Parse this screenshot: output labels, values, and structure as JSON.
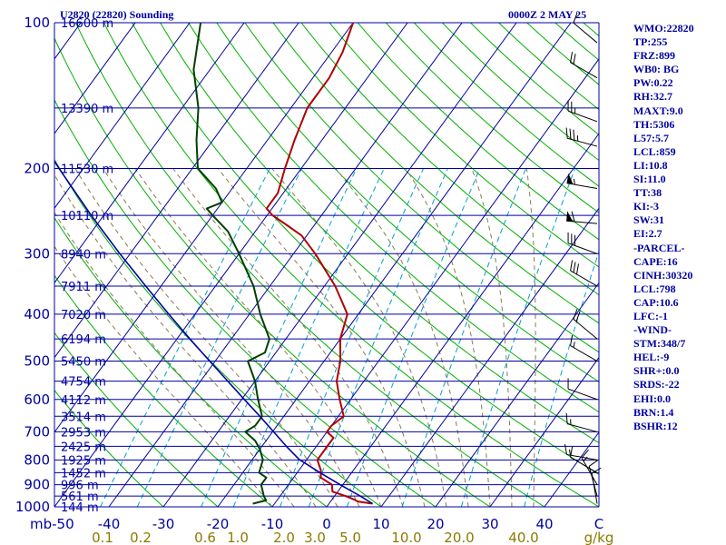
{
  "header": {
    "station": "U2820 (22820) Sounding",
    "time": "0000Z  2 MAY 25"
  },
  "indices": [
    "WMO:22820",
    "TP:255",
    "FRZ:899",
    "WB0: BG",
    "PW:0.22",
    "RH:32.7",
    "MAXT:9.0",
    "TH:5306",
    "L57:5.7",
    "LCL:859",
    "LI:10.8",
    "SI:11.0",
    "TT:38",
    "KI:-3",
    "SW:31",
    "EI:2.7",
    "-PARCEL-",
    "CAPE:16",
    "CINH:30320",
    "LCL:798",
    "CAP:10.6",
    "LFC:-1",
    "-WIND-",
    "STM:348/7",
    "HEL:-9",
    "SHR+:0.0",
    "SRDS:-22",
    "EHI:0.0",
    "BRN:1.4",
    "BSHR:12"
  ],
  "colors": {
    "isobar": "#0000a0",
    "isotherm": "#0000a0",
    "dry_adiabat": "#00b000",
    "moist_adiabat": "#8a7a50",
    "mixing_ratio": "#00a0d0",
    "temperature": "#b00000",
    "dewpoint": "#004000",
    "parcel": "#0000a0",
    "wind_barb": "#000000"
  },
  "chart_data": {
    "type": "line",
    "title": "U2820 (22820) Sounding",
    "chart_kind": "skew-T log-P",
    "p_range": [
      1000,
      100
    ],
    "t_range_at_base": [
      -50,
      50
    ],
    "pressure_ticks": [
      100,
      200,
      300,
      400,
      500,
      600,
      700,
      800,
      900,
      1000
    ],
    "pressure_axis_label": "mb",
    "temperature_ticks": [
      -50,
      -40,
      -30,
      -20,
      -10,
      0,
      10,
      20,
      30,
      40
    ],
    "temperature_axis_label": "C",
    "mixing_ratio_ticks": [
      "0.1",
      "0.2",
      "0.6",
      "1.0",
      "2.0",
      "3.0",
      "5.0",
      "10.0",
      "20.0",
      "40.0"
    ],
    "mixing_ratio_unit": "g/kg",
    "height_labels": [
      {
        "p": 100,
        "label": "16600 m"
      },
      {
        "p": 150,
        "label": "13390 m"
      },
      {
        "p": 200,
        "label": "11530 m"
      },
      {
        "p": 250,
        "label": "10110 m"
      },
      {
        "p": 300,
        "label": "8940 m"
      },
      {
        "p": 350,
        "label": "7911 m"
      },
      {
        "p": 400,
        "label": "7020 m"
      },
      {
        "p": 450,
        "label": "6194 m"
      },
      {
        "p": 500,
        "label": "5450 m"
      },
      {
        "p": 550,
        "label": "4754 m"
      },
      {
        "p": 600,
        "label": "4112 m"
      },
      {
        "p": 650,
        "label": "3514 m"
      },
      {
        "p": 700,
        "label": "2953 m"
      },
      {
        "p": 750,
        "label": "2425 m"
      },
      {
        "p": 800,
        "label": "1925 m"
      },
      {
        "p": 850,
        "label": "1452 m"
      },
      {
        "p": 900,
        "label": "996 m"
      },
      {
        "p": 950,
        "label": "561 m"
      },
      {
        "p": 1000,
        "label": "144 m"
      }
    ],
    "series": [
      {
        "key": "temperature",
        "points": [
          [
            985,
            8
          ],
          [
            975,
            5
          ],
          [
            965,
            4
          ],
          [
            950,
            2
          ],
          [
            930,
            -1
          ],
          [
            900,
            -2
          ],
          [
            870,
            -5
          ],
          [
            840,
            -6
          ],
          [
            800,
            -8
          ],
          [
            750,
            -8
          ],
          [
            720,
            -8
          ],
          [
            700,
            -10
          ],
          [
            680,
            -10
          ],
          [
            650,
            -9
          ],
          [
            600,
            -12
          ],
          [
            550,
            -15
          ],
          [
            500,
            -17
          ],
          [
            450,
            -20
          ],
          [
            400,
            -22
          ],
          [
            350,
            -28
          ],
          [
            300,
            -36
          ],
          [
            275,
            -41
          ],
          [
            262,
            -45
          ],
          [
            250,
            -49
          ],
          [
            242,
            -51
          ],
          [
            235,
            -51
          ],
          [
            225,
            -51
          ],
          [
            200,
            -53
          ],
          [
            175,
            -55
          ],
          [
            150,
            -57
          ],
          [
            130,
            -57
          ],
          [
            115,
            -58
          ],
          [
            100,
            -60
          ]
        ]
      },
      {
        "key": "dewpoint",
        "points": [
          [
            985,
            -14
          ],
          [
            970,
            -12
          ],
          [
            950,
            -13
          ],
          [
            900,
            -15
          ],
          [
            870,
            -15
          ],
          [
            850,
            -17
          ],
          [
            800,
            -18
          ],
          [
            760,
            -20
          ],
          [
            730,
            -22
          ],
          [
            700,
            -25
          ],
          [
            680,
            -24
          ],
          [
            650,
            -24
          ],
          [
            600,
            -27
          ],
          [
            550,
            -30
          ],
          [
            500,
            -34
          ],
          [
            480,
            -32
          ],
          [
            450,
            -33
          ],
          [
            400,
            -38
          ],
          [
            350,
            -43
          ],
          [
            300,
            -50
          ],
          [
            270,
            -55
          ],
          [
            250,
            -60
          ],
          [
            242,
            -62
          ],
          [
            235,
            -60
          ],
          [
            220,
            -63
          ],
          [
            200,
            -69
          ],
          [
            175,
            -73
          ],
          [
            150,
            -77
          ],
          [
            125,
            -83
          ],
          [
            100,
            -88
          ]
        ]
      },
      {
        "key": "parcel",
        "points": [
          [
            985,
            8
          ],
          [
            950,
            4.7
          ],
          [
            900,
            -0.5
          ],
          [
            850,
            -5.8
          ],
          [
            798,
            -11.4
          ],
          [
            750,
            -15.5
          ],
          [
            700,
            -19.8
          ],
          [
            650,
            -24.4
          ],
          [
            600,
            -29.5
          ],
          [
            550,
            -35
          ],
          [
            500,
            -41
          ],
          [
            450,
            -47.6
          ],
          [
            400,
            -54.8
          ],
          [
            350,
            -62.8
          ],
          [
            300,
            -71.9
          ],
          [
            250,
            -82.3
          ],
          [
            200,
            -94.5
          ],
          [
            150,
            -109.5
          ],
          [
            100,
            -128.7
          ]
        ]
      }
    ],
    "wind_barbs": [
      {
        "p": 985,
        "dir": 350,
        "speed": 10
      },
      {
        "p": 950,
        "dir": 345,
        "speed": 10
      },
      {
        "p": 900,
        "dir": 330,
        "speed": 15
      },
      {
        "p": 850,
        "dir": 300,
        "speed": 10
      },
      {
        "p": 800,
        "dir": 280,
        "speed": 15
      },
      {
        "p": 700,
        "dir": 285,
        "speed": 15
      },
      {
        "p": 600,
        "dir": 290,
        "speed": 10
      },
      {
        "p": 500,
        "dir": 300,
        "speed": 15
      },
      {
        "p": 450,
        "dir": 310,
        "speed": 20
      },
      {
        "p": 350,
        "dir": 300,
        "speed": 30
      },
      {
        "p": 300,
        "dir": 290,
        "speed": 30
      },
      {
        "p": 260,
        "dir": 275,
        "speed": 60
      },
      {
        "p": 220,
        "dir": 280,
        "speed": 55
      },
      {
        "p": 180,
        "dir": 285,
        "speed": 35
      },
      {
        "p": 160,
        "dir": 290,
        "speed": 25
      },
      {
        "p": 130,
        "dir": 300,
        "speed": 20
      },
      {
        "p": 110,
        "dir": 310,
        "speed": 10
      }
    ]
  }
}
